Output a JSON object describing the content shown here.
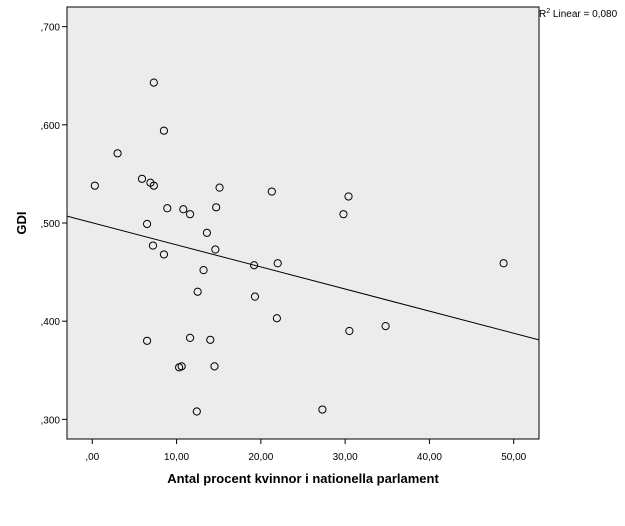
{
  "chart_data": {
    "type": "scatter",
    "title": "",
    "xlabel": "Antal procent kvinnor i nationella parlament",
    "ylabel": "GDI",
    "xlim": [
      -3,
      53
    ],
    "ylim": [
      0.28,
      0.72
    ],
    "x_ticks": [
      0,
      10,
      20,
      30,
      40,
      50
    ],
    "x_tick_labels": [
      ",00",
      "10,00",
      "20,00",
      "30,00",
      "40,00",
      "50,00"
    ],
    "y_ticks": [
      0.3,
      0.4,
      0.5,
      0.6,
      0.7
    ],
    "y_tick_labels": [
      ",300",
      ",400",
      ",500",
      ",600",
      ",700"
    ],
    "grid": false,
    "background": "#ececec",
    "marker": "open-circle",
    "r2_label_prefix": "R",
    "r2_label_suffix": " Linear = 0,080",
    "fit_line": {
      "type": "linear",
      "x": [
        -3,
        53
      ],
      "y": [
        0.507,
        0.381
      ]
    },
    "points": [
      {
        "x": 7.3,
        "y": 0.643
      },
      {
        "x": 8.5,
        "y": 0.594
      },
      {
        "x": 3.0,
        "y": 0.571
      },
      {
        "x": 0.3,
        "y": 0.538
      },
      {
        "x": 5.9,
        "y": 0.545
      },
      {
        "x": 6.9,
        "y": 0.541
      },
      {
        "x": 7.3,
        "y": 0.538
      },
      {
        "x": 15.1,
        "y": 0.536
      },
      {
        "x": 21.3,
        "y": 0.532
      },
      {
        "x": 30.4,
        "y": 0.527
      },
      {
        "x": 8.9,
        "y": 0.515
      },
      {
        "x": 10.8,
        "y": 0.514
      },
      {
        "x": 14.7,
        "y": 0.516
      },
      {
        "x": 11.6,
        "y": 0.509
      },
      {
        "x": 29.8,
        "y": 0.509
      },
      {
        "x": 6.5,
        "y": 0.499
      },
      {
        "x": 13.6,
        "y": 0.49
      },
      {
        "x": 7.2,
        "y": 0.477
      },
      {
        "x": 14.6,
        "y": 0.473
      },
      {
        "x": 8.5,
        "y": 0.468
      },
      {
        "x": 19.2,
        "y": 0.457
      },
      {
        "x": 22.0,
        "y": 0.459
      },
      {
        "x": 48.8,
        "y": 0.459
      },
      {
        "x": 13.2,
        "y": 0.452
      },
      {
        "x": 12.5,
        "y": 0.43
      },
      {
        "x": 19.3,
        "y": 0.425
      },
      {
        "x": 21.9,
        "y": 0.403
      },
      {
        "x": 34.8,
        "y": 0.395
      },
      {
        "x": 30.5,
        "y": 0.39
      },
      {
        "x": 11.6,
        "y": 0.383
      },
      {
        "x": 14.0,
        "y": 0.381
      },
      {
        "x": 6.5,
        "y": 0.38
      },
      {
        "x": 10.3,
        "y": 0.353
      },
      {
        "x": 10.6,
        "y": 0.354
      },
      {
        "x": 14.5,
        "y": 0.354
      },
      {
        "x": 12.4,
        "y": 0.308
      },
      {
        "x": 27.3,
        "y": 0.31
      }
    ]
  }
}
